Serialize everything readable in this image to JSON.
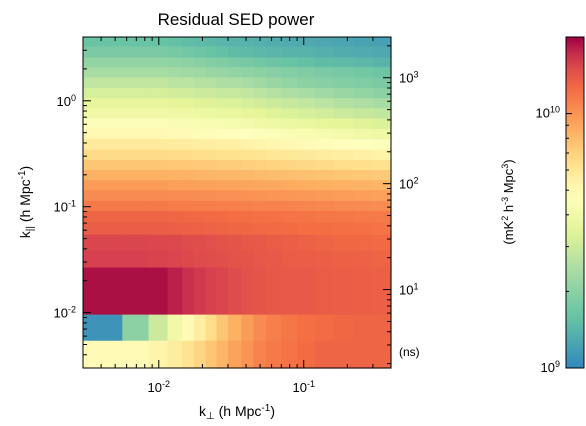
{
  "chart_data": {
    "type": "heatmap",
    "title": "Residual SED power",
    "xlabel": {
      "main": "k",
      "sub": "⊥",
      "unit": " (h Mpc",
      "exp": "-1",
      "close": ")"
    },
    "ylabel": {
      "main": "k",
      "sub": "||",
      "unit": " (h Mpc",
      "exp": "-1",
      "close": ")"
    },
    "x_scale": "log",
    "y_scale": "log",
    "xlim": [
      0.003,
      0.4
    ],
    "ylim": [
      0.003,
      4
    ],
    "x_ticks": [
      {
        "value": 0.01,
        "base": "10",
        "exp": "-2"
      },
      {
        "value": 0.1,
        "base": "10",
        "exp": "-1"
      }
    ],
    "y_ticks": [
      {
        "value": 0.01,
        "base": "10",
        "exp": "-2"
      },
      {
        "value": 0.1,
        "base": "10",
        "exp": "-1"
      },
      {
        "value": 1,
        "base": "10",
        "exp": "0"
      }
    ],
    "secondary_y_axis": {
      "unit_label": "(ns)",
      "ticks": [
        {
          "value": 0.0165,
          "base": "10",
          "exp": "1"
        },
        {
          "value": 0.165,
          "base": "10",
          "exp": "2"
        },
        {
          "value": 1.65,
          "base": "10",
          "exp": "3"
        }
      ]
    },
    "colorbar": {
      "label": {
        "open": "(mK",
        "e1": "2",
        "mid1": " h",
        "e2": "-3",
        "mid2": " Mpc",
        "e3": "3",
        "close": ")"
      },
      "scale": "log",
      "range": [
        1000000000.0,
        20000000000.0
      ],
      "ticks": [
        {
          "value": 1000000000.0,
          "base": "10",
          "exp": "9"
        },
        {
          "value": 10000000000.0,
          "base": "10",
          "exp": "10"
        }
      ]
    },
    "kperp_edges": [
      0.003,
      0.0056,
      0.0085,
      0.0115,
      0.0145,
      0.0175,
      0.021,
      0.025,
      0.03,
      0.037,
      0.045,
      0.055,
      0.07,
      0.09,
      0.12,
      0.16,
      0.22,
      0.3,
      0.4
    ],
    "kpar_edges": [
      0.003,
      0.0055,
      0.0097,
      0.027,
      0.039,
      0.055,
      0.072,
      0.092,
      0.115,
      0.145,
      0.18,
      0.225,
      0.28,
      0.35,
      0.44,
      0.55,
      0.69,
      0.86,
      1.07,
      1.34,
      1.68,
      2.1,
      2.6,
      3.3,
      4.0
    ],
    "power_rows": [
      [
        5000000000.0,
        5000000000.0,
        5300000000.0,
        5700000000.0,
        6200000000.0,
        6800000000.0,
        7500000000.0,
        8300000000.0,
        9200000000.0,
        10000000000.0,
        11000000000.0,
        11500000000.0,
        12000000000.0,
        12500000000.0,
        13000000000.0,
        13000000000.0,
        13000000000.0,
        13000000000.0
      ],
      [
        1100000000.0,
        2000000000.0,
        3000000000.0,
        4000000000.0,
        5000000000.0,
        5600000000.0,
        6500000000.0,
        7500000000.0,
        8500000000.0,
        9500000000.0,
        10500000000.0,
        11200000000.0,
        11800000000.0,
        12200000000.0,
        12500000000.0,
        12800000000.0,
        13000000000.0,
        13000000000.0
      ],
      [
        19000000000.0,
        19000000000.0,
        19000000000.0,
        18000000000.0,
        17000000000.0,
        16500000000.0,
        16000000000.0,
        15500000000.0,
        15000000000.0,
        14500000000.0,
        14200000000.0,
        14000000000.0,
        13800000000.0,
        13800000000.0,
        13600000000.0,
        13500000000.0,
        13400000000.0,
        13300000000.0
      ],
      [
        16000000000.0,
        16000000000.0,
        15800000000.0,
        15500000000.0,
        15200000000.0,
        15000000000.0,
        14800000000.0,
        14600000000.0,
        14400000000.0,
        14200000000.0,
        14000000000.0,
        13800000000.0,
        13600000000.0,
        13500000000.0,
        13400000000.0,
        13300000000.0,
        13200000000.0,
        13000000000.0
      ],
      [
        15500000000.0,
        15500000000.0,
        15400000000.0,
        15200000000.0,
        15000000000.0,
        14800000000.0,
        14600000000.0,
        14400000000.0,
        14200000000.0,
        14000000000.0,
        13800000000.0,
        13600000000.0,
        13400000000.0,
        13200000000.0,
        13000000000.0,
        12800000000.0,
        12700000000.0,
        12600000000.0
      ],
      [
        13500000000.0,
        13500000000.0,
        13500000000.0,
        13400000000.0,
        13300000000.0,
        13200000000.0,
        13100000000.0,
        13000000000.0,
        12900000000.0,
        12800000000.0,
        12700000000.0,
        12600000000.0,
        12500000000.0,
        12400000000.0,
        12300000000.0,
        12200000000.0,
        12100000000.0,
        12000000000.0
      ],
      [
        13000000000.0,
        13000000000.0,
        13000000000.0,
        12900000000.0,
        12800000000.0,
        12700000000.0,
        12600000000.0,
        12500000000.0,
        12400000000.0,
        12300000000.0,
        12200000000.0,
        12100000000.0,
        12000000000.0,
        11900000000.0,
        11800000000.0,
        11700000000.0,
        11600000000.0,
        11500000000.0
      ],
      [
        11500000000.0,
        11500000000.0,
        11500000000.0,
        11400000000.0,
        11400000000.0,
        11300000000.0,
        11300000000.0,
        11200000000.0,
        11200000000.0,
        11100000000.0,
        11000000000.0,
        11000000000.0,
        10900000000.0,
        10800000000.0,
        10700000000.0,
        10600000000.0,
        10500000000.0,
        10400000000.0
      ],
      [
        10500000000.0,
        10500000000.0,
        10500000000.0,
        10400000000.0,
        10400000000.0,
        10300000000.0,
        10300000000.0,
        10200000000.0,
        10200000000.0,
        10100000000.0,
        10000000000.0,
        9900000000.0,
        9800000000.0,
        9700000000.0,
        9600000000.0,
        9500000000.0,
        9400000000.0,
        9300000000.0
      ],
      [
        9500000000.0,
        9500000000.0,
        9500000000.0,
        9400000000.0,
        9400000000.0,
        9300000000.0,
        9300000000.0,
        9200000000.0,
        9200000000.0,
        9100000000.0,
        9000000000.0,
        8900000000.0,
        8800000000.0,
        8700000000.0,
        8600000000.0,
        8500000000.0,
        8400000000.0,
        8300000000.0
      ],
      [
        8500000000.0,
        8500000000.0,
        8500000000.0,
        8400000000.0,
        8400000000.0,
        8300000000.0,
        8300000000.0,
        8200000000.0,
        8200000000.0,
        8100000000.0,
        8000000000.0,
        7900000000.0,
        7800000000.0,
        7700000000.0,
        7600000000.0,
        7500000000.0,
        7400000000.0,
        7300000000.0
      ],
      [
        7500000000.0,
        7500000000.0,
        7500000000.0,
        7400000000.0,
        7400000000.0,
        7300000000.0,
        7300000000.0,
        7200000000.0,
        7200000000.0,
        7100000000.0,
        7000000000.0,
        6900000000.0,
        6800000000.0,
        6700000000.0,
        6600000000.0,
        6500000000.0,
        6400000000.0,
        6300000000.0
      ],
      [
        6600000000.0,
        6600000000.0,
        6600000000.0,
        6500000000.0,
        6500000000.0,
        6400000000.0,
        6400000000.0,
        6300000000.0,
        6300000000.0,
        6200000000.0,
        6100000000.0,
        6000000000.0,
        5900000000.0,
        5800000000.0,
        5700000000.0,
        5600000000.0,
        5500000000.0,
        5400000000.0
      ],
      [
        5800000000.0,
        5800000000.0,
        5800000000.0,
        5700000000.0,
        5700000000.0,
        5600000000.0,
        5600000000.0,
        5500000000.0,
        5500000000.0,
        5400000000.0,
        5300000000.0,
        5200000000.0,
        5100000000.0,
        5000000000.0,
        4900000000.0,
        4800000000.0,
        4700000000.0,
        4600000000.0
      ],
      [
        5100000000.0,
        5100000000.0,
        5100000000.0,
        5000000000.0,
        5000000000.0,
        4900000000.0,
        4900000000.0,
        4800000000.0,
        4800000000.0,
        4700000000.0,
        4600000000.0,
        4500000000.0,
        4400000000.0,
        4300000000.0,
        4200000000.0,
        4100000000.0,
        4000000000.0,
        3900000000.0
      ],
      [
        4500000000.0,
        4500000000.0,
        4500000000.0,
        4400000000.0,
        4400000000.0,
        4300000000.0,
        4300000000.0,
        4200000000.0,
        4200000000.0,
        4100000000.0,
        4000000000.0,
        3900000000.0,
        3800000000.0,
        3700000000.0,
        3600000000.0,
        3500000000.0,
        3400000000.0,
        3300000000.0
      ],
      [
        4000000000.0,
        4000000000.0,
        4000000000.0,
        3900000000.0,
        3900000000.0,
        3800000000.0,
        3800000000.0,
        3700000000.0,
        3700000000.0,
        3600000000.0,
        3500000000.0,
        3400000000.0,
        3300000000.0,
        3200000000.0,
        3100000000.0,
        3000000000.0,
        2900000000.0,
        2800000000.0
      ],
      [
        3600000000.0,
        3600000000.0,
        3600000000.0,
        3500000000.0,
        3500000000.0,
        3400000000.0,
        3400000000.0,
        3300000000.0,
        3300000000.0,
        3200000000.0,
        3100000000.0,
        3000000000.0,
        2900000000.0,
        2800000000.0,
        2700000000.0,
        2600000000.0,
        2500000000.0,
        2400000000.0
      ],
      [
        3200000000.0,
        3200000000.0,
        3200000000.0,
        3100000000.0,
        3100000000.0,
        3000000000.0,
        3000000000.0,
        2900000000.0,
        2900000000.0,
        2800000000.0,
        2700000000.0,
        2600000000.0,
        2500000000.0,
        2400000000.0,
        2300000000.0,
        2200000000.0,
        2100000000.0,
        2000000000.0
      ],
      [
        2800000000.0,
        2800000000.0,
        2800000000.0,
        2700000000.0,
        2700000000.0,
        2600000000.0,
        2600000000.0,
        2500000000.0,
        2500000000.0,
        2400000000.0,
        2300000000.0,
        2200000000.0,
        2100000000.0,
        2000000000.0,
        1950000000.0,
        1900000000.0,
        1850000000.0,
        1800000000.0
      ],
      [
        2400000000.0,
        2400000000.0,
        2400000000.0,
        2350000000.0,
        2300000000.0,
        2250000000.0,
        2200000000.0,
        2150000000.0,
        2100000000.0,
        2050000000.0,
        2000000000.0,
        1950000000.0,
        1900000000.0,
        1850000000.0,
        1800000000.0,
        1750000000.0,
        1700000000.0,
        1650000000.0
      ],
      [
        2100000000.0,
        2100000000.0,
        2100000000.0,
        2050000000.0,
        2000000000.0,
        1950000000.0,
        1900000000.0,
        1850000000.0,
        1800000000.0,
        1750000000.0,
        1700000000.0,
        1650000000.0,
        1600000000.0,
        1550000000.0,
        1500000000.0,
        1480000000.0,
        1450000000.0,
        1400000000.0
      ],
      [
        1800000000.0,
        1800000000.0,
        1800000000.0,
        1750000000.0,
        1700000000.0,
        1650000000.0,
        1600000000.0,
        1550000000.0,
        1500000000.0,
        1480000000.0,
        1450000000.0,
        1420000000.0,
        1400000000.0,
        1380000000.0,
        1350000000.0,
        1320000000.0,
        1300000000.0,
        1280000000.0
      ],
      [
        1600000000.0,
        1600000000.0,
        1600000000.0,
        1550000000.0,
        1500000000.0,
        1480000000.0,
        1450000000.0,
        1420000000.0,
        1400000000.0,
        1380000000.0,
        1350000000.0,
        1320000000.0,
        1300000000.0,
        1280000000.0,
        1260000000.0,
        1240000000.0,
        1220000000.0,
        1200000000.0
      ]
    ]
  }
}
